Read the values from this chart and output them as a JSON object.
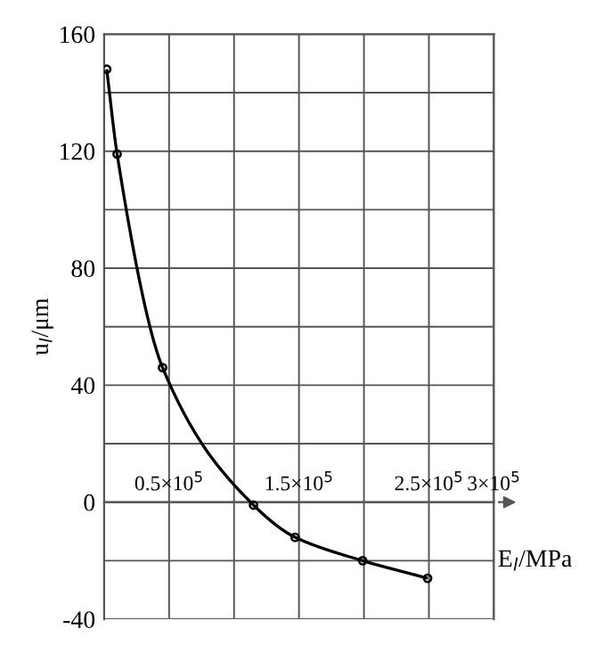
{
  "chart_data": {
    "type": "line",
    "xlabel": "E$_{l}$/MPa",
    "ylabel": "u$_{l}$/μm",
    "x": [
      2000,
      10000,
      45000,
      115000,
      147000,
      199000,
      249000
    ],
    "series": [
      {
        "color": "#000000",
        "values": [
          148,
          119,
          46,
          -1,
          -12,
          -20,
          -26
        ]
      }
    ],
    "xlim": [
      0,
      300000
    ],
    "xticks": [
      {
        "value": 0,
        "label": null
      },
      {
        "value": 50000,
        "label": "0.5×10$^{5}$"
      },
      {
        "value": 100000,
        "label": null
      },
      {
        "value": 150000,
        "label": "1.5×10$^{5}$"
      },
      {
        "value": 200000,
        "label": null
      },
      {
        "value": 250000,
        "label": "2.5×10$^{5}$"
      },
      {
        "value": 300000,
        "label": "3×10$^{5}$"
      }
    ],
    "ylim": [
      -40,
      160
    ],
    "yticks": [
      -40,
      {
        "value": -20,
        "label": null
      },
      0,
      {
        "value": 20,
        "label": null
      },
      40,
      {
        "value": 60,
        "label": null
      },
      80,
      {
        "value": 100,
        "label": null
      },
      120,
      {
        "value": 140,
        "label": null
      },
      160
    ],
    "grid": true,
    "marker": "circle",
    "line_style": "solid"
  }
}
